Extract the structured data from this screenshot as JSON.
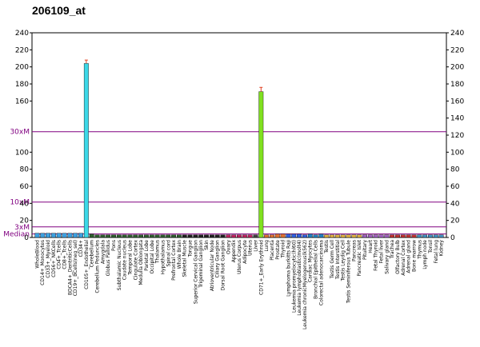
{
  "chart_data": {
    "type": "bar",
    "title": "206109_at",
    "ylim": [
      0,
      240
    ],
    "y_ticks": [
      0,
      20,
      40,
      60,
      80,
      100,
      120,
      140,
      160,
      180,
      200,
      220,
      240
    ],
    "left_axis_labels": [
      {
        "value": 240,
        "label": "240"
      },
      {
        "value": 220,
        "label": "220"
      },
      {
        "value": 200,
        "label": "200"
      },
      {
        "value": 180,
        "label": "180"
      },
      {
        "value": 160,
        "label": "160"
      },
      {
        "value": 100,
        "label": "100"
      },
      {
        "value": 80,
        "label": "80"
      },
      {
        "value": 60,
        "label": "60"
      },
      {
        "value": 40,
        "label": "40"
      },
      {
        "value": 20,
        "label": "20"
      },
      {
        "value": 0,
        "label": "0"
      }
    ],
    "reference_lines": [
      {
        "label": "30xM",
        "value": 124,
        "color": "#800080"
      },
      {
        "label": "10xM",
        "value": 41.5,
        "color": "#800080"
      },
      {
        "label": "3xM",
        "value": 12.4,
        "color": "#800080"
      },
      {
        "label": "Median",
        "value": 4.1,
        "color": "#800080"
      }
    ],
    "categories": [
      "WholeBlood",
      "CD14+_Monocytes",
      "CD33+_Myeloid",
      "CD56+_NKCells",
      "CD4+_Tcells",
      "CD8+_Tcells",
      "BDCA4+_DentriticCells",
      "CD19+_BCells(neg_sel)",
      "CD34+",
      "CD105+_Endothelial",
      "Cerebellum",
      "Cerebellum Peduncles",
      "Amygdala",
      "Globus Pallidus",
      "Pons",
      "Subthalamic Nucleus",
      "Caudate nucleus",
      "Temporal Lobe",
      "Cingulate Cortex",
      "Medulla Oblongata",
      "Parietal Lobe",
      "Occipital Lobe",
      "Thalamus",
      "Hypothalamus",
      "Spinal cord",
      "Prefrontal Cortex",
      "Whole Brain",
      "Skeletal Muscle",
      "Tongue",
      "Superior Cervical Ganglion",
      "Trigeminal Ganglion",
      "Skin",
      "Atrioventricular Node",
      "Ciliary Ganglion",
      "Dorsal Root Ganglion",
      "Ovary",
      "Appendix",
      "Uterus Corpus",
      "Adipocyte",
      "Uterus",
      "Liver",
      "CD71+_Early Erythroid",
      "Lung",
      "Placenta",
      "Prostate",
      "Thyroid",
      "Lymphoma burkitts Raji",
      "Leukemia promyelocytic(hl60)",
      "Leukemia lymphoblastic(molt4)",
      "Leukemia chronicMyelogenous(k562)",
      "Cardiac Myocytes",
      "Bronchial Epithelial Cells",
      "Colorectal adenocarcinoma",
      "Testis",
      "Testis Germ Cell",
      "Testis Interstitial",
      "Testis Leydig Cell",
      "Testis Seminiferous Tubule",
      "Pancreas",
      "Pancreatic Islet",
      "Pituitary",
      "Heart",
      "Fetal Thyroid",
      "Fetal liver",
      "Salivary gland",
      "Trachea",
      "Olfactory Bulb",
      "Adrenal Cortex",
      "Adrenal gland",
      "Bone marrow",
      "Thymus",
      "Lymph node",
      "Tonsil",
      "Fetal lung",
      "Kidney"
    ],
    "values": [
      5,
      5,
      5,
      5,
      5,
      5,
      5,
      5,
      5,
      204,
      4,
      3,
      3,
      3,
      3,
      3,
      3,
      3,
      3,
      3,
      3,
      3,
      3,
      3,
      3,
      3,
      3,
      3,
      3,
      3,
      3,
      3,
      3,
      3,
      3,
      3,
      3,
      3,
      3,
      3,
      3,
      171,
      3,
      3,
      4,
      4,
      4,
      4,
      4,
      3,
      4,
      3,
      4,
      3,
      3,
      3,
      3,
      3,
      3,
      3,
      3,
      3,
      3,
      3,
      3,
      3,
      3,
      3,
      3,
      3,
      3,
      3,
      3,
      3,
      3
    ],
    "errors": [
      0,
      0,
      0,
      0,
      0,
      0,
      0,
      0,
      0,
      4,
      0,
      0,
      0,
      0,
      0,
      0,
      0,
      0,
      0,
      0,
      0,
      0,
      0,
      0,
      0,
      0,
      0,
      0,
      0,
      0,
      0,
      0,
      0,
      0,
      0,
      0,
      0,
      0,
      0,
      0,
      0,
      5,
      0,
      0,
      0,
      0,
      0,
      0,
      0,
      0,
      0,
      0,
      0,
      0,
      0,
      0,
      0,
      0,
      0,
      0,
      0,
      0,
      0,
      0,
      0,
      0,
      0,
      0,
      0,
      0,
      0,
      0,
      0,
      0,
      0
    ],
    "colors": [
      "#3ca0e0",
      "#3ca0e0",
      "#3ca0e0",
      "#3ca0e0",
      "#3ca0e0",
      "#3ca0e0",
      "#3ca0e0",
      "#3ca0e0",
      "#3ca0e0",
      "#3cd8e8",
      "#2e5e2e",
      "#2e5e2e",
      "#2e5e2e",
      "#2e5e2e",
      "#2e5e2e",
      "#2e5e2e",
      "#2e5e2e",
      "#2e5e2e",
      "#2e5e2e",
      "#2e5e2e",
      "#2e5e2e",
      "#2e5e2e",
      "#2e5e2e",
      "#2e5e2e",
      "#2e5e2e",
      "#2e5e2e",
      "#2e5e2e",
      "#202020",
      "#202020",
      "#202020",
      "#202020",
      "#202020",
      "#202020",
      "#202020",
      "#202020",
      "#c02060",
      "#c02060",
      "#c02060",
      "#c02060",
      "#c02060",
      "#404040",
      "#80e020",
      "#e07030",
      "#e07030",
      "#e07030",
      "#e07030",
      "#3060e0",
      "#3060e0",
      "#3060e0",
      "#3060e0",
      "#2080c0",
      "#2080c0",
      "#2080c0",
      "#e0b040",
      "#e0b040",
      "#e0b040",
      "#e0b040",
      "#e0b040",
      "#e0b040",
      "#e0b040",
      "#a060c0",
      "#a060c0",
      "#a060c0",
      "#a060c0",
      "#a060c0",
      "#c03030",
      "#c03030",
      "#c03030",
      "#c03030",
      "#c03030",
      "#4090c0",
      "#4090c0",
      "#4090c0",
      "#4090c0",
      "#4090c0"
    ]
  }
}
